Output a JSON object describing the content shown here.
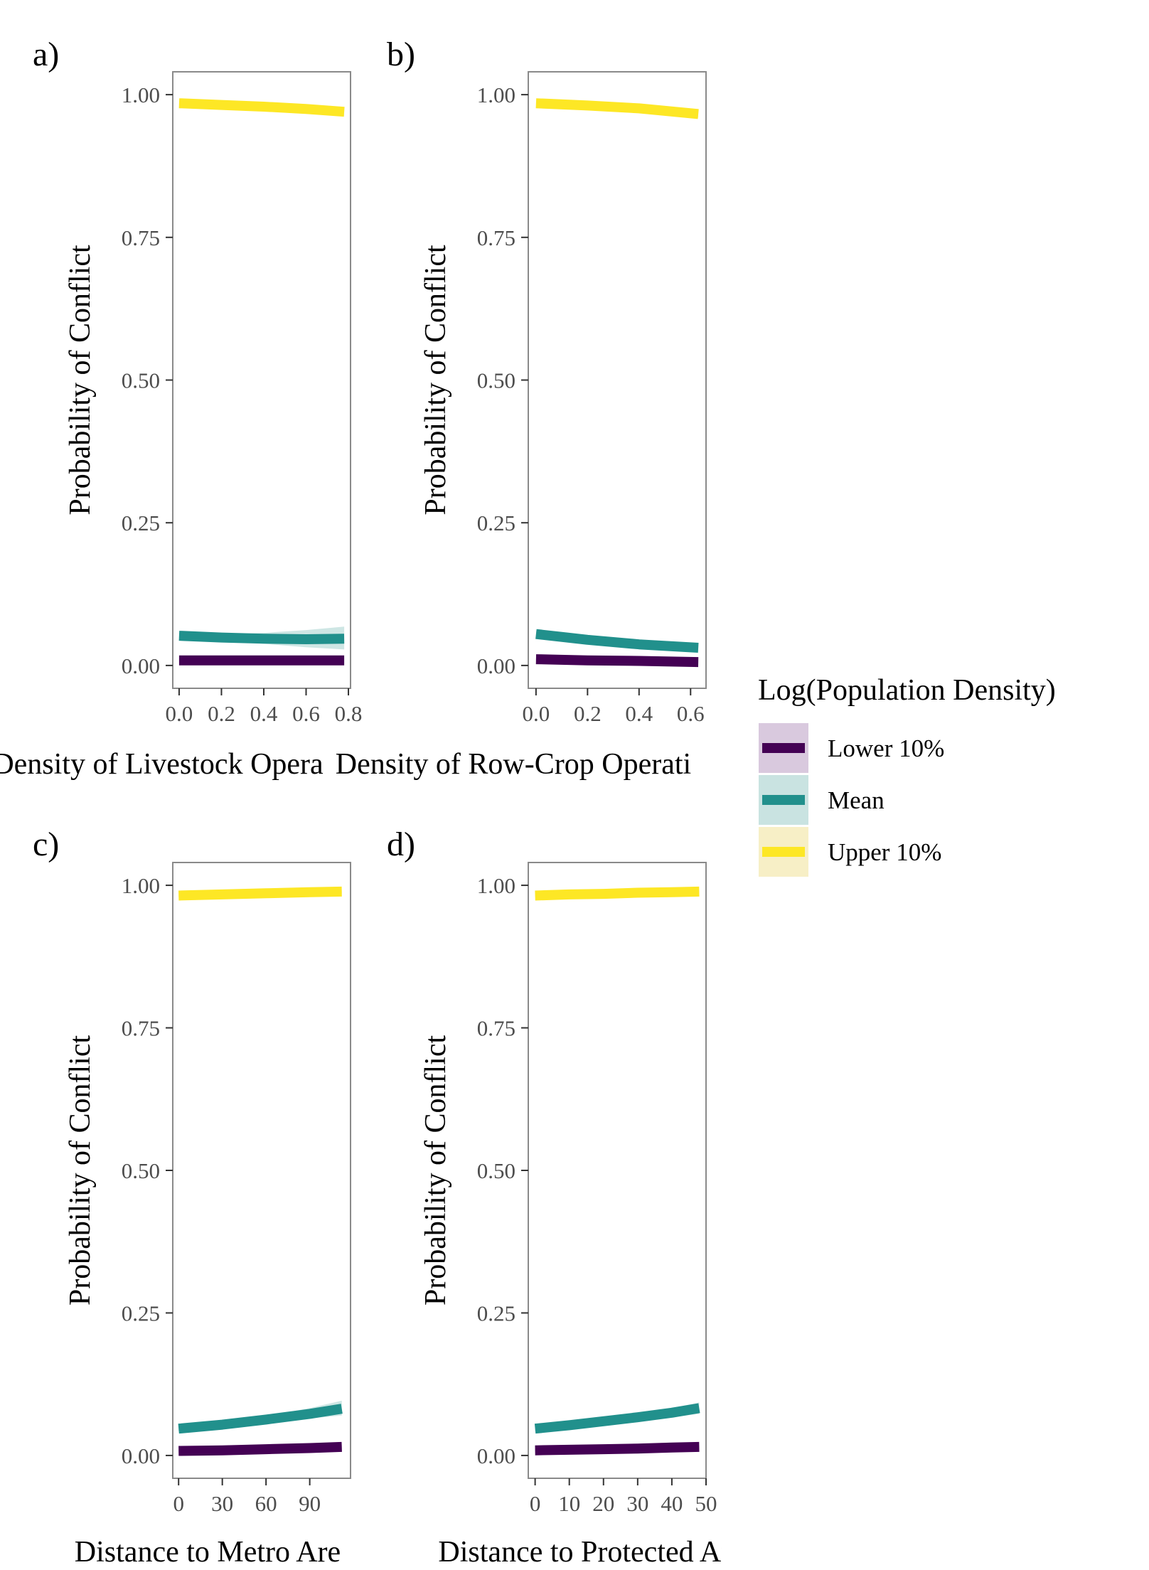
{
  "chart_data": [
    {
      "type": "line",
      "panel_label": "a)",
      "xlabel": "Density of Livestock Opera",
      "ylabel": "Probability of Conflict",
      "xlim": [
        -0.03,
        0.81
      ],
      "ylim": [
        -0.04,
        1.04
      ],
      "xticks": [
        0.0,
        0.2,
        0.4,
        0.6,
        0.8
      ],
      "xtick_labels": [
        "0.0",
        "0.2",
        "0.4",
        "0.6",
        "0.8"
      ],
      "yticks": [
        0.0,
        0.25,
        0.5,
        0.75,
        1.0
      ],
      "ytick_labels": [
        "0.00",
        "0.25",
        "0.50",
        "0.75",
        "1.00"
      ],
      "series": [
        {
          "name": "Lower 10%",
          "x": [
            0.0,
            0.2,
            0.4,
            0.6,
            0.78
          ],
          "y": [
            0.009,
            0.009,
            0.009,
            0.009,
            0.009
          ],
          "ci_lower": [
            0.007,
            0.007,
            0.006,
            0.005,
            0.004
          ],
          "ci_upper": [
            0.011,
            0.011,
            0.012,
            0.013,
            0.014
          ]
        },
        {
          "name": "Mean",
          "x": [
            0.0,
            0.2,
            0.4,
            0.6,
            0.78
          ],
          "y": [
            0.052,
            0.049,
            0.047,
            0.046,
            0.047
          ],
          "ci_lower": [
            0.047,
            0.044,
            0.038,
            0.032,
            0.028
          ],
          "ci_upper": [
            0.057,
            0.055,
            0.057,
            0.062,
            0.068
          ]
        },
        {
          "name": "Upper 10%",
          "x": [
            0.0,
            0.2,
            0.4,
            0.6,
            0.78
          ],
          "y": [
            0.985,
            0.982,
            0.979,
            0.975,
            0.97
          ],
          "ci_lower": [
            0.982,
            0.979,
            0.975,
            0.969,
            0.962
          ],
          "ci_upper": [
            0.987,
            0.985,
            0.983,
            0.98,
            0.977
          ]
        }
      ]
    },
    {
      "type": "line",
      "panel_label": "b)",
      "xlabel": "Density of Row-Crop Operati",
      "ylabel": "Probability of Conflict",
      "xlim": [
        -0.03,
        0.66
      ],
      "ylim": [
        -0.04,
        1.04
      ],
      "xticks": [
        0.0,
        0.2,
        0.4,
        0.6
      ],
      "xtick_labels": [
        "0.0",
        "0.2",
        "0.4",
        "0.6"
      ],
      "series": [
        {
          "name": "Lower 10%",
          "x": [
            0.0,
            0.2,
            0.4,
            0.63
          ],
          "y": [
            0.011,
            0.009,
            0.008,
            0.006
          ],
          "ci_lower": [
            0.009,
            0.008,
            0.006,
            0.004
          ],
          "ci_upper": [
            0.013,
            0.011,
            0.01,
            0.008
          ]
        },
        {
          "name": "Mean",
          "x": [
            0.0,
            0.2,
            0.4,
            0.63
          ],
          "y": [
            0.055,
            0.045,
            0.037,
            0.031
          ],
          "ci_lower": [
            0.05,
            0.041,
            0.032,
            0.025
          ],
          "ci_upper": [
            0.06,
            0.05,
            0.042,
            0.038
          ]
        },
        {
          "name": "Upper 10%",
          "x": [
            0.0,
            0.2,
            0.4,
            0.63
          ],
          "y": [
            0.985,
            0.981,
            0.976,
            0.966
          ],
          "ci_lower": [
            0.983,
            0.978,
            0.972,
            0.96
          ],
          "ci_upper": [
            0.987,
            0.984,
            0.98,
            0.972
          ]
        }
      ]
    },
    {
      "type": "line",
      "panel_label": "c)",
      "xlabel": "Distance to Metro Are",
      "ylabel": "Probability of Conflict",
      "xlim": [
        -4,
        118
      ],
      "ylim": [
        -0.04,
        1.04
      ],
      "xticks": [
        0,
        30,
        60,
        90
      ],
      "xtick_labels": [
        "0",
        "30",
        "60",
        "90"
      ],
      "yticks": [
        0.0,
        0.25,
        0.5,
        0.75,
        1.0
      ],
      "ytick_labels": [
        "0.00",
        "0.25",
        "0.50",
        "0.75",
        "1.00"
      ],
      "series": [
        {
          "name": "Lower 10%",
          "x": [
            0,
            30,
            60,
            90,
            112
          ],
          "y": [
            0.008,
            0.009,
            0.011,
            0.013,
            0.015
          ],
          "ci_lower": [
            0.006,
            0.007,
            0.009,
            0.01,
            0.011
          ],
          "ci_upper": [
            0.01,
            0.011,
            0.013,
            0.016,
            0.019
          ]
        },
        {
          "name": "Mean",
          "x": [
            0,
            30,
            60,
            90,
            112
          ],
          "y": [
            0.047,
            0.054,
            0.063,
            0.073,
            0.082
          ],
          "ci_lower": [
            0.043,
            0.05,
            0.057,
            0.065,
            0.07
          ],
          "ci_upper": [
            0.051,
            0.058,
            0.069,
            0.083,
            0.096
          ]
        },
        {
          "name": "Upper 10%",
          "x": [
            0,
            30,
            60,
            90,
            112
          ],
          "y": [
            0.982,
            0.984,
            0.986,
            0.988,
            0.989
          ],
          "ci_lower": [
            0.98,
            0.982,
            0.984,
            0.985,
            0.986
          ],
          "ci_upper": [
            0.984,
            0.986,
            0.988,
            0.99,
            0.991
          ]
        }
      ]
    },
    {
      "type": "line",
      "panel_label": "d)",
      "xlabel": "Distance to Protected Area (km)",
      "ylabel": "Probability of Conflict",
      "xlim": [
        -2,
        50
      ],
      "ylim": [
        -0.04,
        1.04
      ],
      "xticks": [
        0,
        10,
        20,
        30,
        40,
        50
      ],
      "xtick_labels": [
        "0",
        "10",
        "20",
        "30",
        "40",
        "50"
      ],
      "yticks": [
        0.0,
        0.25,
        0.5,
        0.75,
        1.0
      ],
      "ytick_labels": [
        "0.00",
        "0.25",
        "0.50",
        "0.75",
        "1.00"
      ],
      "series": [
        {
          "name": "Lower 10%",
          "x": [
            0,
            10,
            20,
            30,
            40,
            48
          ],
          "y": [
            0.009,
            0.01,
            0.011,
            0.012,
            0.014,
            0.015
          ],
          "ci_lower": [
            0.007,
            0.008,
            0.009,
            0.01,
            0.011,
            0.012
          ],
          "ci_upper": [
            0.011,
            0.012,
            0.013,
            0.014,
            0.017,
            0.018
          ]
        },
        {
          "name": "Mean",
          "x": [
            0,
            10,
            20,
            30,
            40,
            48
          ],
          "y": [
            0.047,
            0.053,
            0.06,
            0.067,
            0.075,
            0.083
          ],
          "ci_lower": [
            0.043,
            0.049,
            0.055,
            0.061,
            0.067,
            0.073
          ],
          "ci_upper": [
            0.051,
            0.057,
            0.065,
            0.073,
            0.083,
            0.093
          ]
        },
        {
          "name": "Upper 10%",
          "x": [
            0,
            10,
            20,
            30,
            40,
            48
          ],
          "y": [
            0.982,
            0.984,
            0.985,
            0.987,
            0.988,
            0.989
          ],
          "ci_lower": [
            0.98,
            0.982,
            0.983,
            0.985,
            0.986,
            0.987
          ],
          "ci_upper": [
            0.984,
            0.986,
            0.987,
            0.989,
            0.99,
            0.991
          ]
        }
      ]
    }
  ],
  "legend": {
    "title": "Log(Population Density)",
    "placement": "right",
    "items": [
      {
        "label": "Lower 10%",
        "color": "#440154",
        "fill": "#d9c9de"
      },
      {
        "label": "Mean",
        "color": "#21908c",
        "fill": "#c9e3e1"
      },
      {
        "label": "Upper 10%",
        "color": "#fde725",
        "fill": "#f7efc6"
      }
    ]
  },
  "colors": {
    "Lower 10%": "#440154",
    "Mean": "#21908c",
    "Upper 10%": "#fde725"
  }
}
